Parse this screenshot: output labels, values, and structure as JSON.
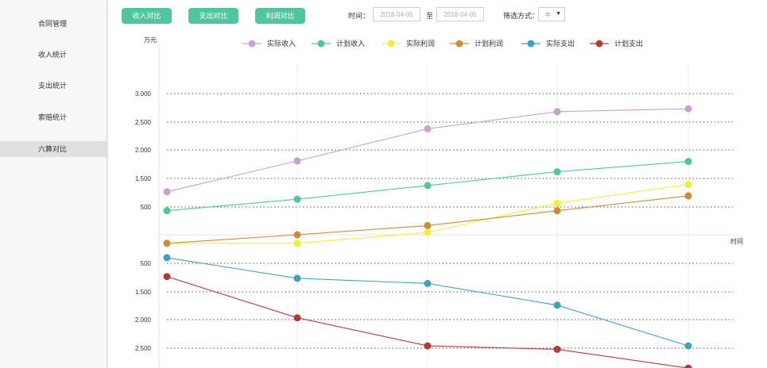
{
  "sidebar": {
    "items": [
      {
        "label": "合同管理",
        "active": false
      },
      {
        "label": "收入统计",
        "active": false
      },
      {
        "label": "支出统计",
        "active": false
      },
      {
        "label": "索赔统计",
        "active": false
      },
      {
        "label": "六算对比",
        "active": true
      }
    ]
  },
  "toolbar": {
    "buttons": [
      "收入对比",
      "支出对比",
      "利润对比"
    ],
    "time_label": "时间：",
    "start_date": "2018-04-05",
    "to_label": "至",
    "end_date": "2018-04-05",
    "filter_label": "筛选方式：",
    "filter_value": "年"
  },
  "colors": {
    "accent": "#4fc5a0"
  },
  "chart_data": {
    "type": "line",
    "ylabel": "万元",
    "xlabel": "时间",
    "upper_ticks": [
      "3.000",
      "2.500",
      "2.000",
      "1.500",
      "500"
    ],
    "lower_ticks": [
      "500",
      "1.500",
      "2.000",
      "2.500"
    ],
    "grid": true,
    "legend_position": "top",
    "series": [
      {
        "name": "实际收入",
        "color": "#c7a3cc",
        "values": [
          750,
          1290,
          1850,
          2150,
          2200
        ]
      },
      {
        "name": "计划收入",
        "color": "#4fc79b",
        "values": [
          420,
          620,
          860,
          1100,
          1280
        ]
      },
      {
        "name": "实际利润",
        "color": "#f2ef3a",
        "values": [
          -150,
          -150,
          40,
          550,
          880
        ]
      },
      {
        "name": "计划利润",
        "color": "#cf8a3a",
        "values": [
          -150,
          0,
          160,
          420,
          680
        ]
      },
      {
        "name": "实际支出",
        "color": "#3fa2b8",
        "values": [
          -400,
          -760,
          -850,
          -1230,
          -1940
        ]
      },
      {
        "name": "计划支出",
        "color": "#b23b35",
        "values": [
          -730,
          -1450,
          -1940,
          -2000,
          -2330
        ]
      }
    ]
  }
}
